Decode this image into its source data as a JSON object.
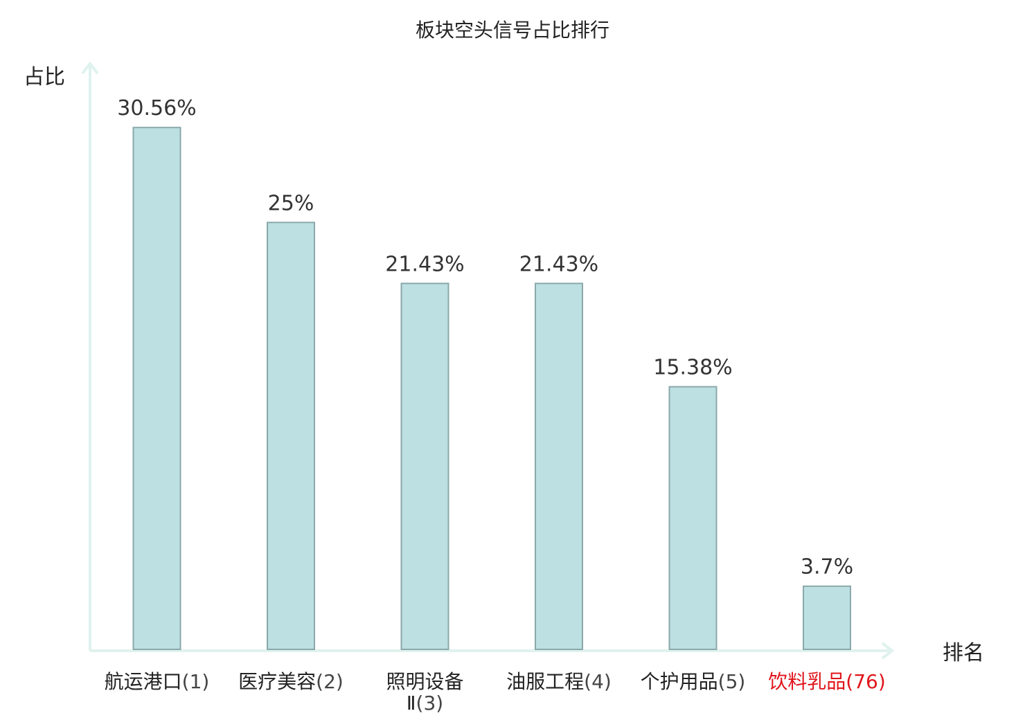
{
  "chart_data": {
    "type": "bar",
    "title": "板块空头信号占比排行",
    "ylabel": "占比",
    "xlabel": "排名",
    "ylim": [
      0,
      31.5
    ],
    "grid": false,
    "legend": "none",
    "categories": [
      {
        "name": "航运港口",
        "rank": "(1)"
      },
      {
        "name": "医疗美容",
        "rank": "(2)"
      },
      {
        "name": "照明设备",
        "name_line2": "Ⅱ",
        "rank": "(3)"
      },
      {
        "name": "油服工程",
        "rank": "(4)"
      },
      {
        "name": "个护用品",
        "rank": "(5)"
      },
      {
        "name": "饮料乳品",
        "rank": "(76)",
        "highlight": true
      }
    ],
    "values": [
      30.56,
      25,
      21.43,
      21.43,
      15.38,
      3.7
    ],
    "value_labels": [
      "30.56%",
      "25%",
      "21.43%",
      "21.43%",
      "15.38%",
      "3.7%"
    ],
    "colors": {
      "bar_fill": "#bde0e2",
      "bar_stroke": "#8aa8aa",
      "axis": "#dff2ee",
      "highlight_text": "#e0141b",
      "text": "#222222"
    }
  }
}
